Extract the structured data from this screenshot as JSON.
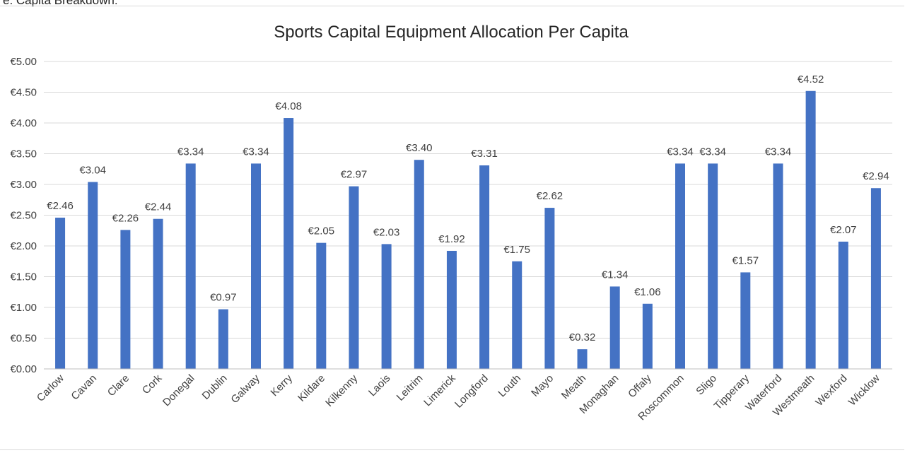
{
  "page": {
    "heading": "e. Capita Breakdown:"
  },
  "chart_data": {
    "type": "bar",
    "title": "Sports Capital Equipment Allocation Per Capita",
    "xlabel": "",
    "ylabel": "",
    "ylim": [
      0,
      5
    ],
    "ytick_step": 0.5,
    "ytick_labels": [
      "€0.00",
      "€0.50",
      "€1.00",
      "€1.50",
      "€2.00",
      "€2.50",
      "€3.00",
      "€3.50",
      "€4.00",
      "€4.50",
      "€5.00"
    ],
    "grid": true,
    "legend": "none",
    "bar_color": "#4472C4",
    "categories": [
      "Carlow",
      "Cavan",
      "Clare",
      "Cork",
      "Donegal",
      "Dublin",
      "Galway",
      "Kerry",
      "Kildare",
      "Kilkenny",
      "Laois",
      "Leitrim",
      "Limerick",
      "Longford",
      "Louth",
      "Mayo",
      "Meath",
      "Monaghan",
      "Offaly",
      "Roscommon",
      "Sligo",
      "Tipperary",
      "Waterford",
      "Westmeath",
      "Wexford",
      "Wicklow"
    ],
    "values": [
      2.46,
      3.04,
      2.26,
      2.44,
      3.34,
      0.97,
      3.34,
      4.08,
      2.05,
      2.97,
      2.03,
      3.4,
      1.92,
      3.31,
      1.75,
      2.62,
      0.32,
      1.34,
      1.06,
      3.34,
      3.34,
      1.57,
      3.34,
      4.52,
      2.07,
      2.94
    ],
    "data_labels": [
      "€2.46",
      "€3.04",
      "€2.26",
      "€2.44",
      "€3.34",
      "€0.97",
      "€3.34",
      "€4.08",
      "€2.05",
      "€2.97",
      "€2.03",
      "€3.40",
      "€1.92",
      "€3.31",
      "€1.75",
      "€2.62",
      "€0.32",
      "€1.34",
      "€1.06",
      "€3.34",
      "€3.34",
      "€1.57",
      "€3.34",
      "€4.52",
      "€2.07",
      "€2.94"
    ]
  }
}
